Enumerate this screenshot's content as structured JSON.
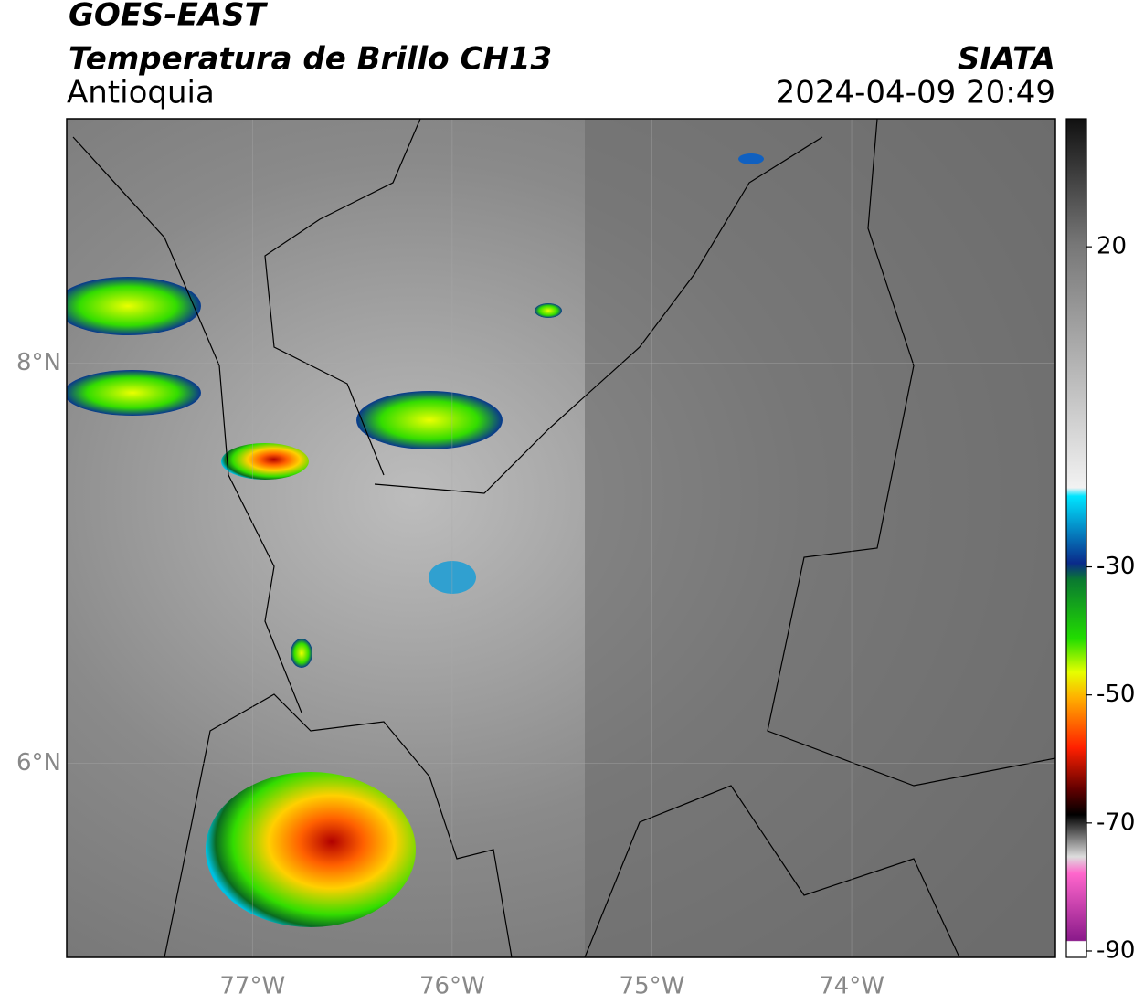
{
  "header": {
    "satellite": "GOES-EAST",
    "product": "Temperatura de Brillo CH13",
    "region": "Antioquia",
    "source": "SIATA",
    "datetime": "2024-04-09 20:49"
  },
  "map": {
    "xlim": [
      -77.93,
      -72.98
    ],
    "ylim": [
      5.03,
      9.22
    ],
    "xticks": [
      {
        "value": -77,
        "label": "77°W"
      },
      {
        "value": -76,
        "label": "76°W"
      },
      {
        "value": -75,
        "label": "75°W"
      },
      {
        "value": -74,
        "label": "74°W"
      }
    ],
    "yticks": [
      {
        "value": 6,
        "label": "6°N"
      },
      {
        "value": 8,
        "label": "8°N"
      }
    ]
  },
  "colorbar": {
    "lim": [
      -91,
      40
    ],
    "ticks": [
      20,
      -30,
      -50,
      -70,
      -90
    ]
  }
}
